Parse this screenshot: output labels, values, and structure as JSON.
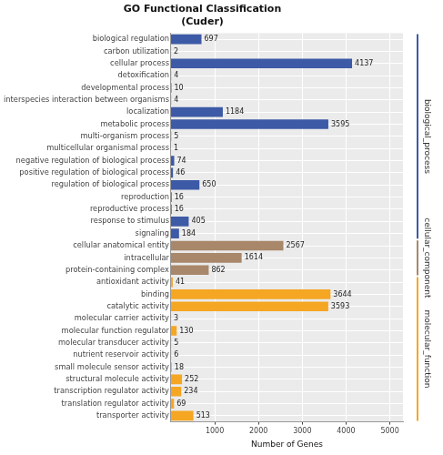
{
  "chart_data": {
    "type": "bar",
    "orientation": "horizontal",
    "title": "GO Functional Classification",
    "subtitle": "(Cuder)",
    "x_label": "Number of Genes",
    "categories": [
      "biological regulation",
      "carbon utilization",
      "cellular process",
      "detoxification",
      "developmental process",
      "interspecies interaction between organisms",
      "localization",
      "metabolic process",
      "multi-organism process",
      "multicellular organismal process",
      "negative regulation of biological process",
      "positive regulation of biological process",
      "regulation of biological process",
      "reproduction",
      "reproductive process",
      "response to stimulus",
      "signaling",
      "cellular anatomical entity",
      "intracellular",
      "protein-containing complex",
      "antioxidant activity",
      "binding",
      "catalytic activity",
      "molecular carrier activity",
      "molecular function regulator",
      "molecular transducer activity",
      "nutrient reservoir activity",
      "small molecule sensor activity",
      "structural molecule activity",
      "transcription regulator activity",
      "translation regulator activity",
      "transporter activity"
    ],
    "series": [
      {
        "name": "biological_process",
        "color": "#3d5aa6",
        "values": [
          697,
          2,
          4137,
          4,
          10,
          4,
          1184,
          3595,
          5,
          1,
          74,
          46,
          650,
          16,
          16,
          405,
          184,
          null,
          null,
          null,
          null,
          null,
          null,
          null,
          null,
          null,
          null,
          null,
          null,
          null,
          null,
          null
        ]
      },
      {
        "name": "cellular_component",
        "color": "#a8876a",
        "values": [
          null,
          null,
          null,
          null,
          null,
          null,
          null,
          null,
          null,
          null,
          null,
          null,
          null,
          null,
          null,
          null,
          null,
          2567,
          1614,
          862,
          null,
          null,
          null,
          null,
          null,
          null,
          null,
          null,
          null,
          null,
          null,
          null
        ]
      },
      {
        "name": "molecular_function",
        "color": "#f5a623",
        "values": [
          null,
          null,
          null,
          null,
          null,
          null,
          null,
          null,
          null,
          null,
          null,
          null,
          null,
          null,
          null,
          null,
          null,
          null,
          null,
          null,
          41,
          3644,
          3593,
          3,
          130,
          5,
          6,
          18,
          252,
          234,
          69,
          513
        ]
      }
    ],
    "xlim": [
      0,
      5300
    ],
    "xticks": [
      1000,
      2000,
      3000,
      4000,
      5000
    ],
    "grid": true,
    "data_labels": true
  }
}
